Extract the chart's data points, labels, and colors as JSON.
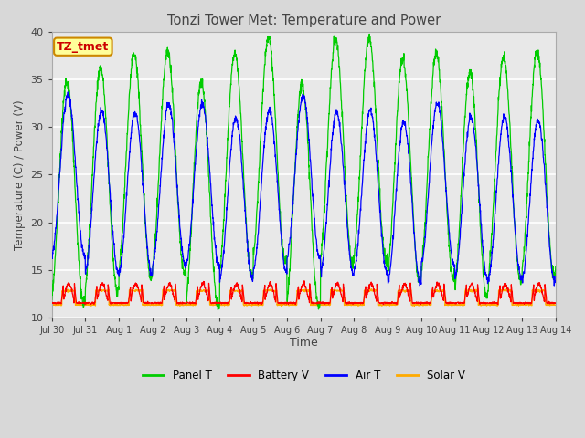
{
  "title": "Tonzi Tower Met: Temperature and Power",
  "xlabel": "Time",
  "ylabel": "Temperature (C) / Power (V)",
  "ylim": [
    10,
    40
  ],
  "xlim": [
    0,
    15
  ],
  "xtick_labels": [
    "Jul 30",
    "Jul 31",
    "Aug 1",
    "Aug 2",
    "Aug 3",
    "Aug 4",
    "Aug 5",
    "Aug 6",
    "Aug 7",
    "Aug 8",
    "Aug 9",
    "Aug 10",
    "Aug 11",
    "Aug 12",
    "Aug 13",
    "Aug 14"
  ],
  "ytick_values": [
    10,
    15,
    20,
    25,
    30,
    35,
    40
  ],
  "bg_color": "#d8d8d8",
  "plot_bg_color": "#e8e8e8",
  "grid_color": "#ffffff",
  "legend_label": "TZ_tmet",
  "legend_box_color": "#ffff99",
  "legend_box_edge": "#cc8800",
  "series": {
    "panel_t": {
      "label": "Panel T",
      "color": "#00cc00"
    },
    "battery_v": {
      "label": "Battery V",
      "color": "#ff0000"
    },
    "air_t": {
      "label": "Air T",
      "color": "#0000ff"
    },
    "solar_v": {
      "label": "Solar V",
      "color": "#ffaa00"
    }
  },
  "n_days": 15,
  "ppd": 144,
  "panel_t_peak": 37.0,
  "panel_t_trough": 13.5,
  "air_t_peak": 32.0,
  "air_t_trough": 15.0,
  "battery_v_base": 11.5,
  "battery_v_peak": 13.5,
  "solar_v_base": 11.3,
  "solar_v_plateau": 12.8
}
